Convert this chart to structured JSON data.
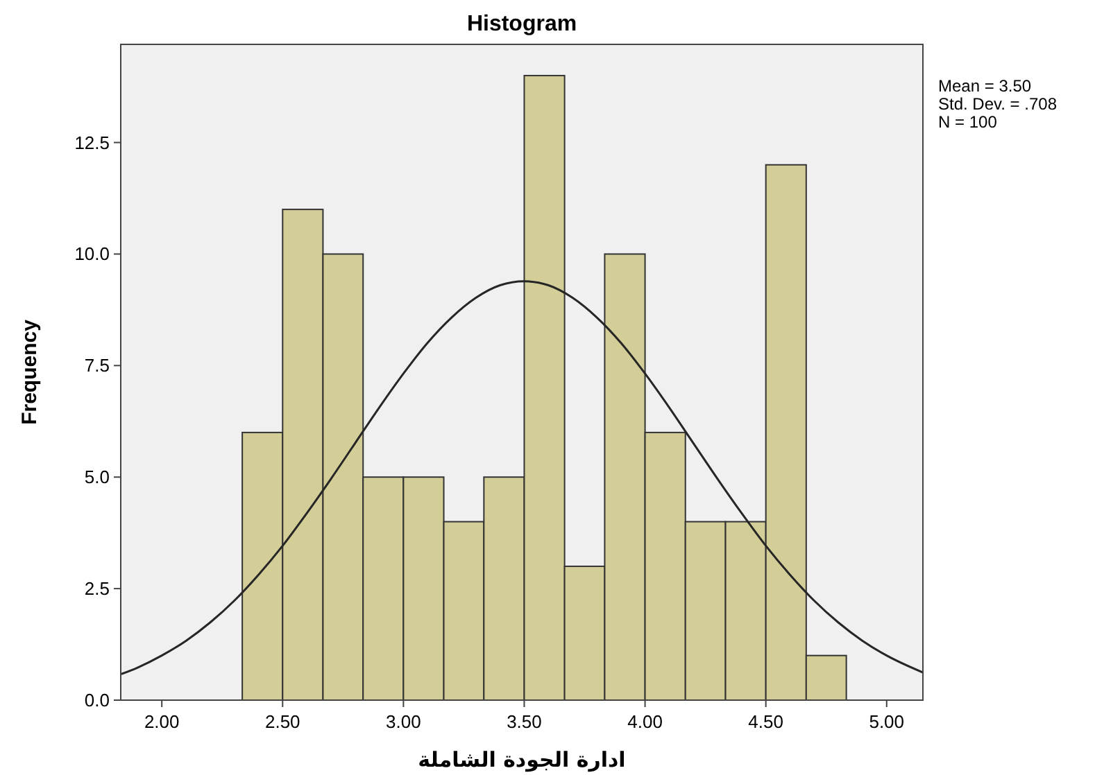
{
  "chart_data": {
    "type": "histogram",
    "title": "Histogram",
    "xlabel": "ادارة الجودة الشاملة",
    "ylabel": "Frequency",
    "xlim": [
      1.83,
      5.15
    ],
    "ylim": [
      0,
      14.7
    ],
    "xticks": [
      {
        "value": 2,
        "label": "2.00"
      },
      {
        "value": 2.5,
        "label": "2.50"
      },
      {
        "value": 3,
        "label": "3.00"
      },
      {
        "value": 3.5,
        "label": "3.50"
      },
      {
        "value": 4,
        "label": "4.00"
      },
      {
        "value": 4.5,
        "label": "4.50"
      },
      {
        "value": 5,
        "label": "5.00"
      }
    ],
    "yticks": [
      {
        "value": 0,
        "label": "0.0"
      },
      {
        "value": 2.5,
        "label": "2.5"
      },
      {
        "value": 5,
        "label": "5.0"
      },
      {
        "value": 7.5,
        "label": "7.5"
      },
      {
        "value": 10,
        "label": "10.0"
      },
      {
        "value": 12.5,
        "label": "12.5"
      }
    ],
    "grid": false,
    "series": [
      {
        "color": "#d3cd97",
        "bins": [
          2.333,
          2.5,
          2.667,
          2.833,
          3,
          3.167,
          3.333,
          3.5,
          3.667,
          3.833,
          4,
          4.167,
          4.333,
          4.5,
          4.667,
          4.833
        ],
        "values": [
          6,
          11,
          10,
          5,
          5,
          4,
          5,
          14,
          3,
          10,
          6,
          4,
          4,
          12,
          1
        ]
      },
      {
        "type": "line",
        "color": "#262626",
        "x": [
          1.83,
          1.9,
          2.0,
          2.1,
          2.2,
          2.3,
          2.4,
          2.5,
          2.6,
          2.7,
          2.8,
          2.9,
          3.0,
          3.1,
          3.2,
          3.3,
          3.4,
          3.5,
          3.6,
          3.7,
          3.8,
          3.9,
          4.0,
          4.1,
          4.2,
          4.3,
          4.4,
          4.5,
          4.6,
          4.7,
          4.8,
          4.9,
          5.0,
          5.15
        ],
        "values": [
          0.58,
          0.73,
          1.0,
          1.33,
          1.74,
          2.23,
          2.81,
          3.46,
          4.19,
          4.96,
          5.76,
          6.56,
          7.32,
          8.01,
          8.58,
          9.02,
          9.3,
          9.39,
          9.3,
          9.02,
          8.58,
          8.01,
          7.32,
          6.56,
          5.76,
          4.96,
          4.19,
          3.46,
          2.81,
          2.23,
          1.74,
          1.33,
          1.0,
          0.62
        ]
      }
    ],
    "annotations": [
      "Mean = 3.50",
      "Std. Dev. = .708",
      "N = 100"
    ]
  }
}
